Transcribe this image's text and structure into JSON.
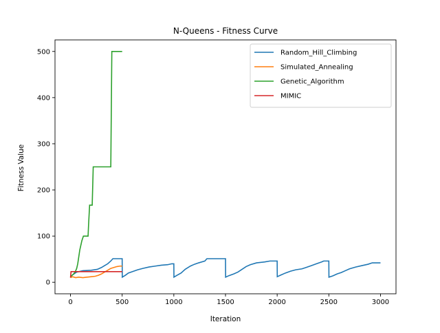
{
  "chart_data": {
    "type": "line",
    "title": "N-Queens - Fitness Curve",
    "xlabel": "Iteration",
    "ylabel": "Fitness Value",
    "xlim": [
      -150,
      3150
    ],
    "ylim": [
      -25,
      525
    ],
    "xticks": [
      0,
      500,
      1000,
      1500,
      2000,
      2500,
      3000
    ],
    "yticks": [
      0,
      100,
      200,
      300,
      400,
      500
    ],
    "grid": false,
    "legend_position": "top-right",
    "series": [
      {
        "name": "Random_Hill_Climbing",
        "color": "#1f77b4",
        "points": [
          [
            0,
            12
          ],
          [
            20,
            16
          ],
          [
            60,
            22
          ],
          [
            120,
            25
          ],
          [
            200,
            26
          ],
          [
            260,
            28
          ],
          [
            300,
            32
          ],
          [
            330,
            36
          ],
          [
            360,
            40
          ],
          [
            390,
            46
          ],
          [
            410,
            51
          ],
          [
            500,
            51
          ],
          [
            501,
            11
          ],
          [
            530,
            15
          ],
          [
            560,
            20
          ],
          [
            600,
            23
          ],
          [
            650,
            27
          ],
          [
            700,
            30
          ],
          [
            760,
            33
          ],
          [
            820,
            35
          ],
          [
            880,
            37
          ],
          [
            940,
            38
          ],
          [
            980,
            40
          ],
          [
            1000,
            40
          ],
          [
            1001,
            11
          ],
          [
            1030,
            15
          ],
          [
            1070,
            20
          ],
          [
            1110,
            28
          ],
          [
            1160,
            35
          ],
          [
            1200,
            39
          ],
          [
            1240,
            42
          ],
          [
            1300,
            46
          ],
          [
            1320,
            51
          ],
          [
            1500,
            51
          ],
          [
            1501,
            11
          ],
          [
            1530,
            14
          ],
          [
            1580,
            18
          ],
          [
            1620,
            22
          ],
          [
            1660,
            28
          ],
          [
            1700,
            34
          ],
          [
            1740,
            38
          ],
          [
            1800,
            42
          ],
          [
            1880,
            44
          ],
          [
            1930,
            46
          ],
          [
            2000,
            46
          ],
          [
            2001,
            12
          ],
          [
            2030,
            15
          ],
          [
            2080,
            20
          ],
          [
            2130,
            24
          ],
          [
            2180,
            27
          ],
          [
            2240,
            29
          ],
          [
            2280,
            32
          ],
          [
            2330,
            36
          ],
          [
            2380,
            40
          ],
          [
            2430,
            44
          ],
          [
            2450,
            46
          ],
          [
            2500,
            46
          ],
          [
            2501,
            11
          ],
          [
            2540,
            14
          ],
          [
            2580,
            18
          ],
          [
            2620,
            21
          ],
          [
            2660,
            25
          ],
          [
            2700,
            29
          ],
          [
            2760,
            33
          ],
          [
            2820,
            36
          ],
          [
            2880,
            39
          ],
          [
            2920,
            42
          ],
          [
            3000,
            42
          ]
        ]
      },
      {
        "name": "Simulated_Annealing",
        "color": "#ff7f0e",
        "points": [
          [
            0,
            10
          ],
          [
            20,
            12
          ],
          [
            50,
            10
          ],
          [
            80,
            11
          ],
          [
            120,
            10
          ],
          [
            160,
            11
          ],
          [
            200,
            12
          ],
          [
            240,
            13
          ],
          [
            270,
            15
          ],
          [
            300,
            18
          ],
          [
            330,
            22
          ],
          [
            360,
            26
          ],
          [
            390,
            30
          ],
          [
            420,
            32
          ],
          [
            450,
            34
          ],
          [
            480,
            35
          ],
          [
            500,
            35
          ]
        ]
      },
      {
        "name": "Genetic_Algorithm",
        "color": "#2ca02c",
        "points": [
          [
            0,
            12
          ],
          [
            15,
            15
          ],
          [
            30,
            18
          ],
          [
            45,
            22
          ],
          [
            60,
            30
          ],
          [
            70,
            40
          ],
          [
            80,
            55
          ],
          [
            90,
            70
          ],
          [
            100,
            80
          ],
          [
            110,
            90
          ],
          [
            125,
            100
          ],
          [
            170,
            100
          ],
          [
            175,
            125
          ],
          [
            185,
            167
          ],
          [
            210,
            167
          ],
          [
            220,
            250
          ],
          [
            390,
            250
          ],
          [
            400,
            500
          ],
          [
            500,
            500
          ]
        ]
      },
      {
        "name": "MIMIC",
        "color": "#d62728",
        "points": [
          [
            0,
            10
          ],
          [
            5,
            23
          ],
          [
            500,
            23
          ]
        ]
      }
    ]
  }
}
